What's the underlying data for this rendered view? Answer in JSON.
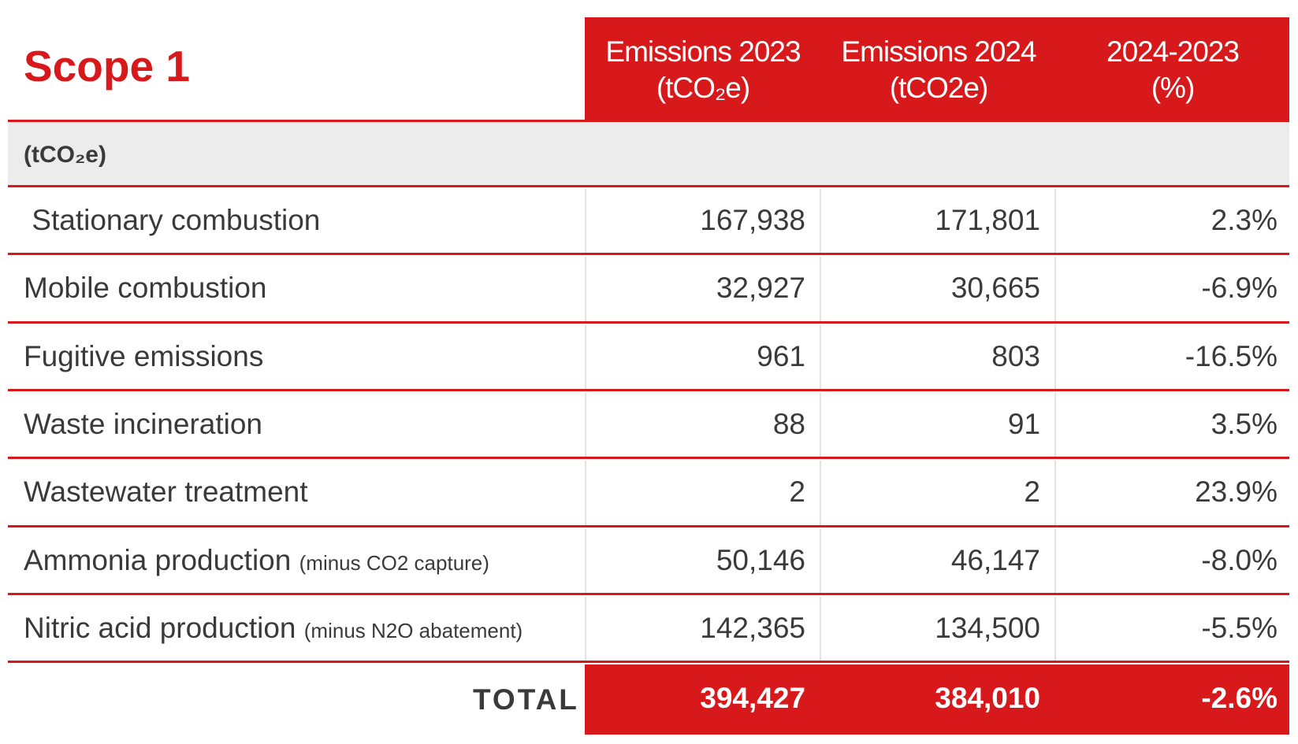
{
  "title": "Scope 1",
  "columns": [
    {
      "line1": "Emissions 2023",
      "line2": "(tCO₂e)"
    },
    {
      "line1": "Emissions 2024",
      "line2": "(tCO2e)"
    },
    {
      "line1": "2024-2023",
      "line2": "(%)"
    }
  ],
  "unit_label": "(tCO₂e)",
  "rows": [
    {
      "label": " Stationary combustion",
      "note": "",
      "v2023": "167,938",
      "v2024": "171,801",
      "change": "2.3%"
    },
    {
      "label": "Mobile combustion",
      "note": "",
      "v2023": "32,927",
      "v2024": "30,665",
      "change": "-6.9%"
    },
    {
      "label": "Fugitive emissions",
      "note": "",
      "v2023": "961",
      "v2024": "803",
      "change": "-16.5%"
    },
    {
      "label": "Waste incineration",
      "note": "",
      "v2023": "88",
      "v2024": "91",
      "change": "3.5%"
    },
    {
      "label": "Wastewater treatment",
      "note": "",
      "v2023": "2",
      "v2024": "2",
      "change": "23.9%"
    },
    {
      "label": "Ammonia production",
      "note": "(minus CO2 capture)",
      "v2023": "50,146",
      "v2024": "46,147",
      "change": "-8.0%"
    },
    {
      "label": "Nitric acid production",
      "note": "(minus N2O abatement)",
      "v2023": "142,365",
      "v2024": "134,500",
      "change": "-5.5%"
    }
  ],
  "total": {
    "label": "TOTAL",
    "v2023": "394,427",
    "v2024": "384,010",
    "change": "-2.6%"
  },
  "colors": {
    "accent": "#d7191c",
    "band": "#ececec",
    "text": "#3a3a3a"
  }
}
